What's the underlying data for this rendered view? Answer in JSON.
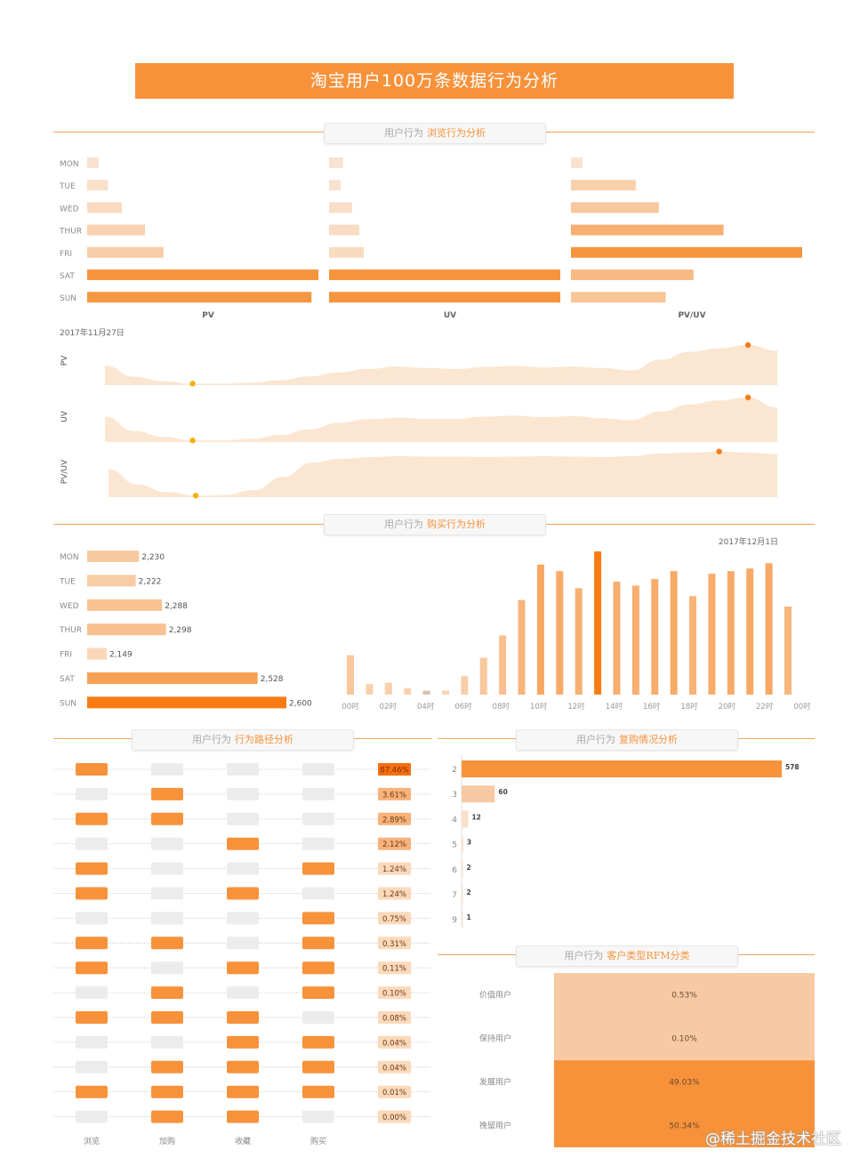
{
  "title": "淘宝用户100万条数据行为分析",
  "sections": {
    "browse": {
      "prefix": "用户行为",
      "highlight": "浏览行为分析"
    },
    "purchase": {
      "prefix": "用户行为",
      "highlight": "购买行为分析"
    },
    "path": {
      "prefix": "用户行为",
      "highlight": "行为路径分析"
    },
    "repurchase": {
      "prefix": "用户行为",
      "highlight": "复购情况分析"
    },
    "rfm": {
      "prefix": "用户行为",
      "highlight": "客户类型RFM分类"
    }
  },
  "watermark": "@稀土掘金技术社区",
  "colors": {
    "accent": "#f7923b",
    "strong": "#f97c12",
    "light": "#f7c9a0",
    "pale": "#f9e6d6"
  },
  "chart_data": [
    {
      "id": "weekday_browse",
      "type": "bar",
      "orientation": "horizontal",
      "categories": [
        "MON",
        "TUE",
        "WED",
        "THUR",
        "FRI",
        "SAT",
        "SUN"
      ],
      "series": [
        {
          "name": "PV",
          "values": [
            5,
            9,
            15,
            25,
            33,
            100,
            97
          ]
        },
        {
          "name": "UV",
          "values": [
            6,
            5,
            10,
            13,
            15,
            100,
            100
          ]
        },
        {
          "name": "PV/UV",
          "values": [
            5,
            28,
            38,
            66,
            100,
            53,
            41
          ]
        }
      ]
    },
    {
      "id": "hourly_trend",
      "type": "area",
      "date_label": "2017年11月27日",
      "x": [
        0,
        1,
        2,
        3,
        4,
        5,
        6,
        7,
        8,
        9,
        10,
        11,
        12,
        13,
        14,
        15,
        16,
        17,
        18,
        19,
        20,
        21,
        22,
        23
      ],
      "series": [
        {
          "name": "PV",
          "values": [
            40,
            17,
            8,
            3,
            3,
            5,
            10,
            18,
            26,
            33,
            38,
            35,
            33,
            37,
            39,
            36,
            38,
            35,
            30,
            52,
            68,
            75,
            82,
            70
          ]
        },
        {
          "name": "UV",
          "values": [
            50,
            22,
            10,
            3,
            3,
            6,
            14,
            25,
            38,
            45,
            48,
            46,
            46,
            50,
            52,
            49,
            51,
            47,
            43,
            60,
            74,
            82,
            88,
            68
          ]
        },
        {
          "name": "PV/UV",
          "values": [
            55,
            25,
            10,
            3,
            4,
            14,
            40,
            68,
            76,
            79,
            81,
            80,
            80,
            79,
            80,
            81,
            80,
            79,
            81,
            86,
            88,
            90,
            88,
            85
          ]
        }
      ],
      "annotations": [
        {
          "series": "all",
          "type": "min-marker"
        },
        {
          "series": "all",
          "type": "max-marker"
        }
      ]
    },
    {
      "id": "weekday_purchase",
      "type": "bar",
      "orientation": "horizontal",
      "categories": [
        "MON",
        "TUE",
        "WED",
        "THUR",
        "FRI",
        "SAT",
        "SUN"
      ],
      "values": [
        2230,
        2222,
        2288,
        2298,
        2149,
        2528,
        2600
      ],
      "labels": [
        "2,230",
        "2,222",
        "2,288",
        "2,298",
        "2,149",
        "2,528",
        "2,600"
      ]
    },
    {
      "id": "hourly_purchase",
      "type": "bar",
      "date_label": "2017年12月1日",
      "x_ticks": [
        "00时",
        "02时",
        "04时",
        "06时",
        "08时",
        "10时",
        "12时",
        "14时",
        "16时",
        "18时",
        "20时",
        "22时",
        "00时"
      ],
      "values": [
        30,
        8,
        9,
        5,
        3,
        3,
        14,
        28,
        45,
        72,
        99,
        94,
        81,
        109,
        86,
        83,
        88,
        94,
        75,
        92,
        94,
        96,
        100,
        67
      ],
      "highlight_index": 13
    },
    {
      "id": "behavior_path",
      "type": "table",
      "columns": [
        "浏览",
        "加购",
        "收藏",
        "购买"
      ],
      "rows": [
        {
          "flags": [
            1,
            0,
            0,
            0
          ],
          "pct": "87.46%"
        },
        {
          "flags": [
            0,
            1,
            0,
            0
          ],
          "pct": "3.61%"
        },
        {
          "flags": [
            1,
            1,
            0,
            0
          ],
          "pct": "2.89%"
        },
        {
          "flags": [
            0,
            0,
            1,
            0
          ],
          "pct": "2.12%"
        },
        {
          "flags": [
            1,
            0,
            0,
            1
          ],
          "pct": "1.24%"
        },
        {
          "flags": [
            1,
            0,
            1,
            0
          ],
          "pct": "1.24%"
        },
        {
          "flags": [
            0,
            0,
            0,
            1
          ],
          "pct": "0.75%"
        },
        {
          "flags": [
            1,
            1,
            0,
            1
          ],
          "pct": "0.31%"
        },
        {
          "flags": [
            1,
            0,
            1,
            1
          ],
          "pct": "0.11%"
        },
        {
          "flags": [
            0,
            1,
            0,
            1
          ],
          "pct": "0.10%"
        },
        {
          "flags": [
            1,
            1,
            1,
            0
          ],
          "pct": "0.08%"
        },
        {
          "flags": [
            0,
            0,
            1,
            1
          ],
          "pct": "0.04%"
        },
        {
          "flags": [
            0,
            1,
            1,
            1
          ],
          "pct": "0.04%"
        },
        {
          "flags": [
            1,
            1,
            1,
            1
          ],
          "pct": "0.01%"
        },
        {
          "flags": [
            0,
            1,
            1,
            0
          ],
          "pct": "0.00%"
        }
      ]
    },
    {
      "id": "repurchase",
      "type": "bar",
      "orientation": "horizontal",
      "categories": [
        "2",
        "3",
        "4",
        "5",
        "6",
        "7",
        "9"
      ],
      "values": [
        578,
        60,
        12,
        3,
        2,
        2,
        1
      ]
    },
    {
      "id": "rfm",
      "type": "table",
      "categories": [
        "价值用户",
        "保持用户",
        "发展用户",
        "挽留用户"
      ],
      "values": [
        "0.53%",
        "0.10%",
        "49.03%",
        "50.34%"
      ]
    }
  ]
}
